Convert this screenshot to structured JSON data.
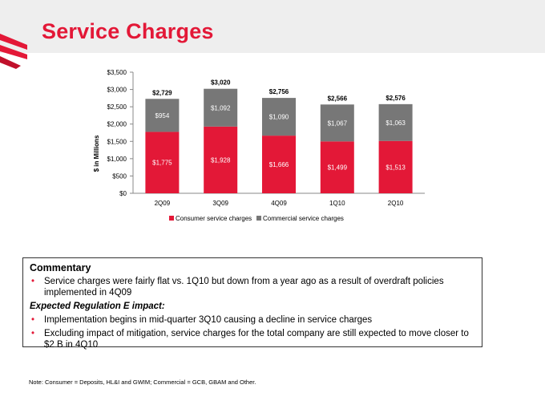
{
  "page": {
    "title": "Service Charges"
  },
  "colors": {
    "consumer": "#e31837",
    "commercial": "#777777",
    "title": "#e31837"
  },
  "chart_data": {
    "type": "bar",
    "stacked": true,
    "title": "",
    "xlabel": "",
    "ylabel": "$ in Millions",
    "ylim": [
      0,
      3500
    ],
    "y_ticks": [
      0,
      500,
      1000,
      1500,
      2000,
      2500,
      3000,
      3500
    ],
    "y_tick_labels": [
      "$0",
      "$500",
      "$1,000",
      "$1,500",
      "$2,000",
      "$2,500",
      "$3,000",
      "$3,500"
    ],
    "categories": [
      "2Q09",
      "3Q09",
      "4Q09",
      "1Q10",
      "2Q10"
    ],
    "series": [
      {
        "name": "Consumer service charges",
        "values": [
          1775,
          1928,
          1666,
          1499,
          1513
        ],
        "labels": [
          "$1,775",
          "$1,928",
          "$1,666",
          "$1,499",
          "$1,513"
        ],
        "color": "#e31837"
      },
      {
        "name": "Commercial service charges",
        "values": [
          954,
          1092,
          1090,
          1067,
          1063
        ],
        "labels": [
          "$954",
          "$1,092",
          "$1,090",
          "$1,067",
          "$1,063"
        ],
        "color": "#777777"
      }
    ],
    "totals": [
      2729,
      3020,
      2756,
      2566,
      2576
    ],
    "total_labels": [
      "$2,729",
      "$3,020",
      "$2,756",
      "$2,566",
      "$2,576"
    ],
    "legend": "bottom",
    "grid": false
  },
  "commentary": {
    "heading": "Commentary",
    "bullet1": "Service charges were fairly flat vs. 1Q10 but down from a year ago as a result of overdraft policies implemented in 4Q09",
    "subheading": "Expected Regulation E impact:",
    "bullet2": "Implementation begins in mid-quarter 3Q10 causing a decline in service charges",
    "bullet3": "Excluding impact of mitigation, service charges for the total company are still expected to move closer to $2 B in 4Q10",
    "bullet_glyph": "•"
  },
  "footnote": "Note: Consumer = Deposits, HL&I and GWIM; Commercial = GCB, GBAM and Other."
}
